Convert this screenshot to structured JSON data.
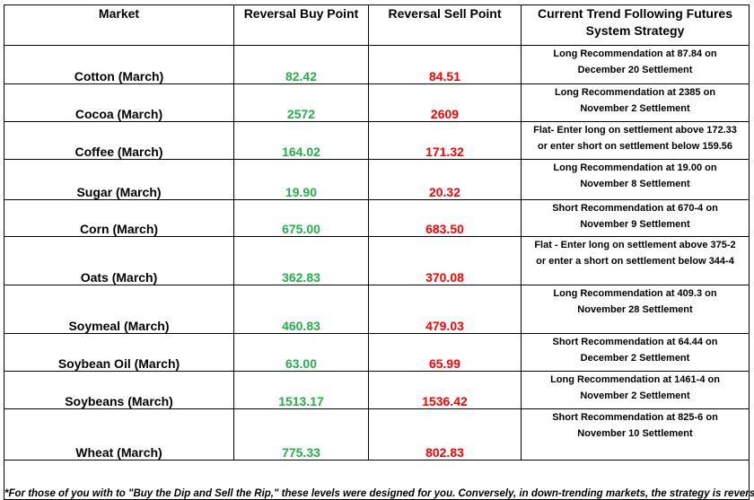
{
  "headers": {
    "market": "Market",
    "buy": "Reversal Buy Point",
    "sell": "Reversal Sell Point",
    "strategy_line1": "Current Trend Following Futures",
    "strategy_line2": "System Strategy"
  },
  "colors": {
    "buy": "#22b04a",
    "sell": "#ff0000"
  },
  "rows": [
    {
      "market": "Cotton (March)",
      "buy": "82.42",
      "sell": "84.51",
      "strategy": [
        "Long Recommendation at 87.84 on",
        "December 20 Settlement"
      ]
    },
    {
      "market": "Cocoa (March)",
      "buy": "2572",
      "sell": "2609",
      "strategy": [
        "Long Recommendation at 2385 on",
        "November 2 Settlement"
      ]
    },
    {
      "market": "Coffee (March)",
      "buy": "164.02",
      "sell": "171.32",
      "strategy": [
        "Flat- Enter long on settlement above 172.33",
        "or enter short on settlement below 159.56"
      ]
    },
    {
      "market": "Sugar (March)",
      "buy": "19.90",
      "sell": "20.32",
      "strategy": [
        "Long Recommendation at 19.00 on",
        "November 8 Settlement"
      ]
    },
    {
      "market": "Corn (March)",
      "buy": "675.00",
      "sell": "683.50",
      "strategy": [
        "Short Recommendation at 670-4 on",
        "November 9 Settlement"
      ]
    },
    {
      "market": "Oats (March)",
      "buy": "362.83",
      "sell": "370.08",
      "strategy": [
        "Flat - Enter long on settlement above 375-2",
        "or enter a short on settlement below 344-4"
      ]
    },
    {
      "market": "Soymeal (March)",
      "buy": "460.83",
      "sell": "479.03",
      "strategy": [
        "Long Recommendation at 409.3 on",
        "November 28 Settlement"
      ]
    },
    {
      "market": "Soybean Oil (March)",
      "buy": "63.00",
      "sell": "65.99",
      "strategy": [
        "Short Recommendation at 64.44 on",
        "December 2 Settlement"
      ]
    },
    {
      "market": "Soybeans (March)",
      "buy": "1513.17",
      "sell": "1536.42",
      "strategy": [
        "Long Recommendation at 1461-4 on",
        "November 2 Settlement"
      ]
    },
    {
      "market": "Wheat (March)",
      "buy": "775.33",
      "sell": "802.83",
      "strategy": [
        "Short Recommendation at 825-6 on",
        "November 10 Settlement"
      ]
    }
  ],
  "footnote": "*For those of you with to \"Buy the Dip and Sell the Rip,\" these levels were designed for you. Conversely, in down-trending markets, the strategy is reversed."
}
